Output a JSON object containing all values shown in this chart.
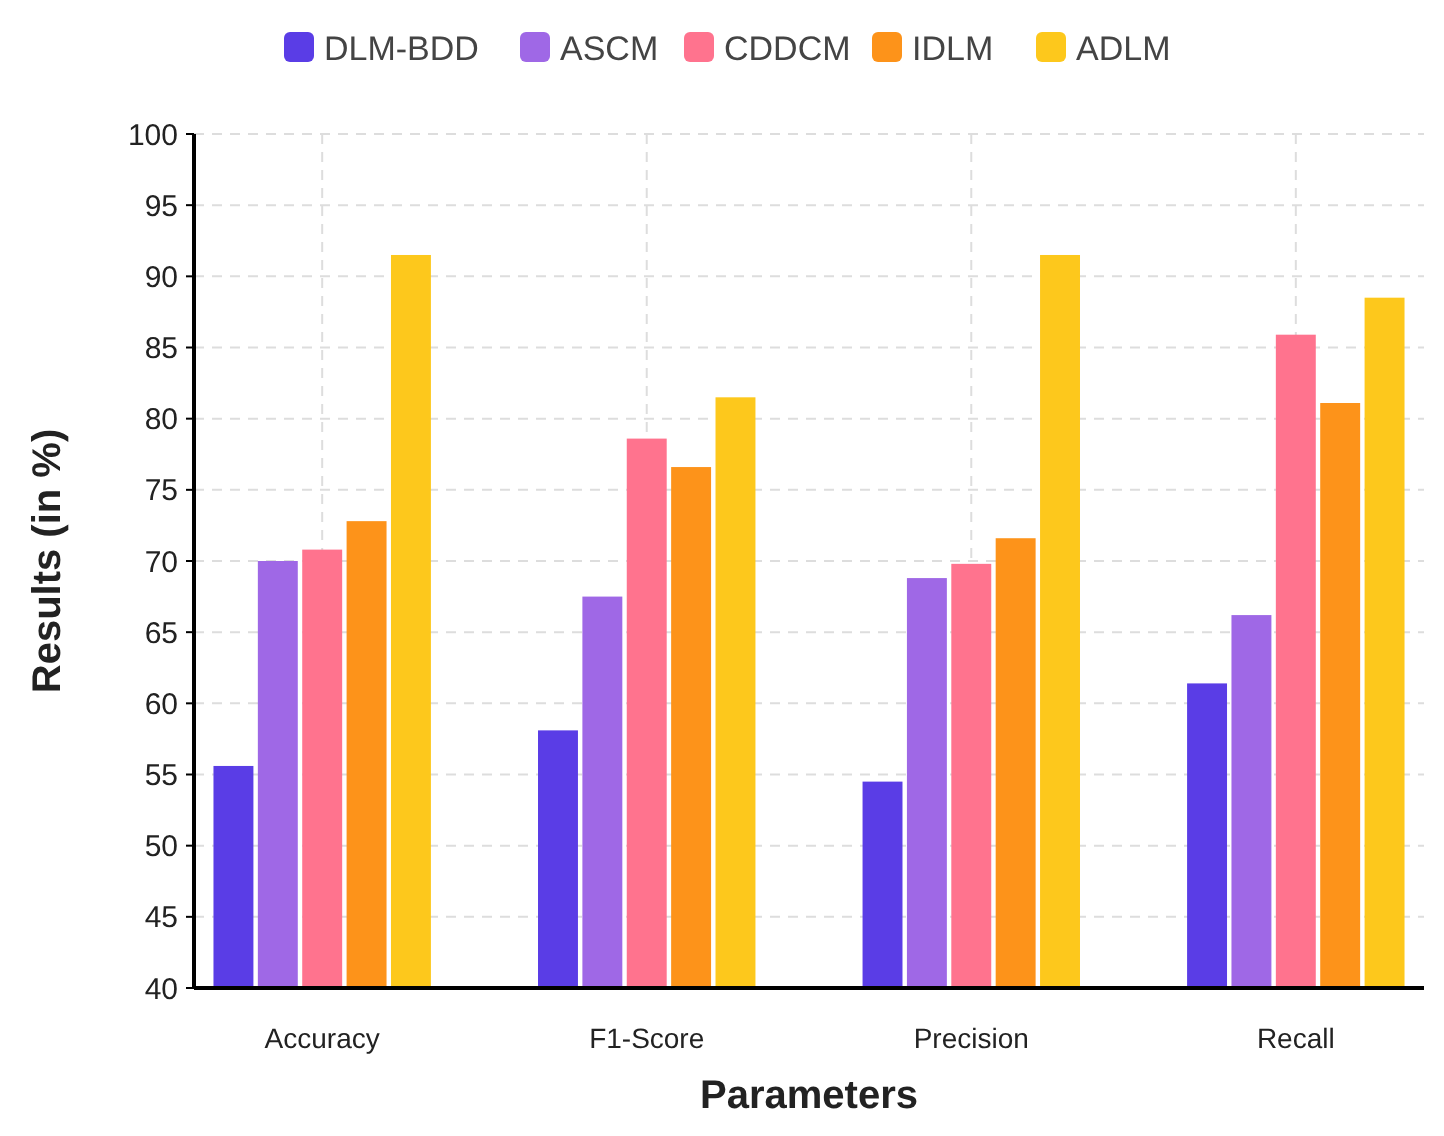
{
  "chart_data": {
    "type": "bar",
    "xlabel": "Parameters",
    "ylabel": "Results (in %)",
    "categories": [
      "Accuracy",
      "F1-Score",
      "Precision",
      "Recall"
    ],
    "series": [
      {
        "name": "DLM-BDD",
        "color": "#5a3de6",
        "values": [
          55.6,
          58.1,
          54.5,
          61.4
        ]
      },
      {
        "name": "ASCM",
        "color": "#9f68e6",
        "values": [
          70,
          67.5,
          68.8,
          66.2
        ]
      },
      {
        "name": "CDDCM",
        "color": "#ff738e",
        "values": [
          70.8,
          78.6,
          69.8,
          85.9
        ]
      },
      {
        "name": "IDLM",
        "color": "#fd931a",
        "values": [
          72.8,
          76.6,
          71.6,
          81.1
        ]
      },
      {
        "name": "ADLM",
        "color": "#fdc81c",
        "values": [
          91.5,
          81.5,
          91.5,
          88.5
        ]
      }
    ],
    "ylim": [
      40,
      100
    ],
    "yticks": [
      40,
      45,
      50,
      55,
      60,
      65,
      70,
      75,
      80,
      85,
      90,
      95,
      100
    ],
    "grid": true,
    "legend": "top"
  }
}
